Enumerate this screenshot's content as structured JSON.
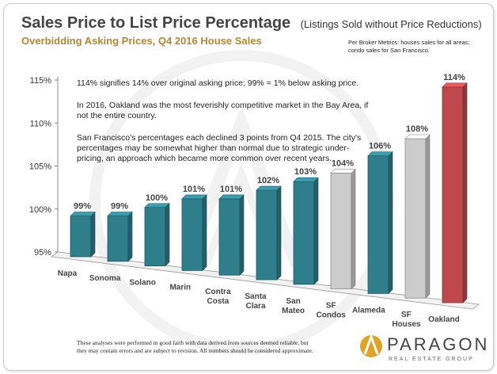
{
  "header": {
    "title": "Sales Price to List Price Percentage",
    "title_paren": "(Listings Sold without Price Reductions)",
    "subtitle": "Overbidding Asking Prices, Q4 2016 House Sales",
    "source_note_line1": "Per Broker Metrics: houses sales for all areas;",
    "source_note_line2": "condo sales for San Francisco."
  },
  "annotations": {
    "line1": "114% signifies 14% over original asking price; 99% = 1% below asking price.",
    "line2": "In 2016, Oakland was the most feverishly competitive market in the Bay Area, if",
    "line3": "not the entire country.",
    "line4": "San Francisco's percentages each declined 3 points from Q4 2015. The city's",
    "line5": "percentages may be somewhat higher than normal due to strategic under-",
    "line6": "pricing, an approach which became more common over recent years."
  },
  "footer": {
    "disclaimer_line1": "These analyses were performed in good faith with data derived from sources deemed reliable, but",
    "disclaimer_line2": "they may contain errors and are subject to revision. All numbers should be considered approximate.",
    "logo_name": "PARAGON",
    "logo_tagline": "REAL ESTATE GROUP"
  },
  "colors": {
    "teal": "#2e7e8c",
    "gray": "#cccccc",
    "red": "#c0474c",
    "title": "#444444",
    "subtitle": "#b8862f",
    "logo_gold": "#e0a324"
  },
  "chart_data": {
    "type": "bar",
    "categories": [
      [
        "Napa"
      ],
      [
        "Sonoma"
      ],
      [
        "Solano"
      ],
      [
        "Marin"
      ],
      [
        "Contra",
        "Costa"
      ],
      [
        "Santa",
        "Clara"
      ],
      [
        "San",
        "Mateo"
      ],
      [
        "SF",
        "Condos"
      ],
      [
        "Alameda"
      ],
      [
        "SF",
        "Houses"
      ],
      [
        "Oakland"
      ]
    ],
    "values": [
      99,
      99,
      100,
      101,
      101,
      102,
      103,
      104,
      106,
      108,
      114
    ],
    "value_labels": [
      "99%",
      "99%",
      "100%",
      "101%",
      "101%",
      "102%",
      "103%",
      "104%",
      "106%",
      "108%",
      "114%"
    ],
    "bar_colors": [
      "teal",
      "teal",
      "teal",
      "teal",
      "teal",
      "teal",
      "teal",
      "gray",
      "teal",
      "gray",
      "red"
    ],
    "y_ticks": [
      95,
      100,
      105,
      110,
      115
    ],
    "y_tick_labels": [
      "95%",
      "100%",
      "105%",
      "110%",
      "115%"
    ],
    "ylim": [
      95,
      115
    ],
    "grid": false,
    "legend": "none",
    "style": "3d-bars"
  }
}
